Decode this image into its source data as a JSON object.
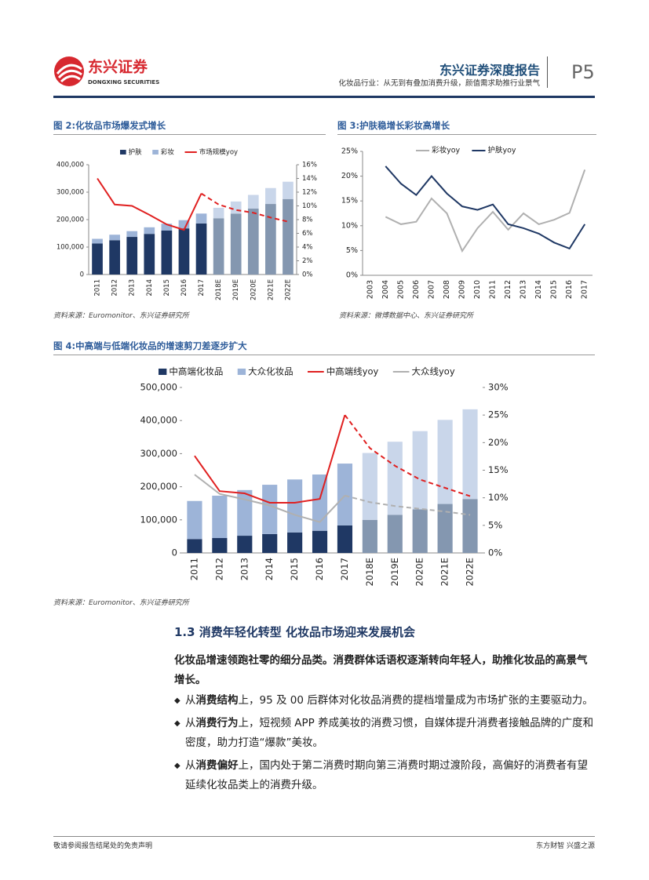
{
  "header": {
    "logo_cn": "东兴证券",
    "logo_en": "DONGXING SECURITIES",
    "report_type": "东兴证券深度报告",
    "subtitle": "化妆品行业：从无到有叠加消费升级，颜值需求助推行业景气",
    "page": "P5"
  },
  "chart_data": [
    {
      "type": "bar",
      "title": "图 2:化妆品市场爆发式增长",
      "source": "资料来源：Euromonitor、东兴证券研究所",
      "categories": [
        "2011",
        "2012",
        "2013",
        "2014",
        "2015",
        "2016",
        "2017",
        "2018E",
        "2019E",
        "2020E",
        "2021E",
        "2022E"
      ],
      "series": [
        {
          "name": "护肤",
          "type": "bar",
          "color": "#1f3864",
          "colors": [
            "#1f3864",
            "#1f3864",
            "#1f3864",
            "#1f3864",
            "#1f3864",
            "#1f3864",
            "#1f3864",
            "#8497b0",
            "#8497b0",
            "#8497b0",
            "#8497b0",
            "#8497b0"
          ],
          "values": [
            113000,
            125000,
            137000,
            148000,
            160000,
            168000,
            186000,
            205000,
            222000,
            240000,
            257000,
            275000
          ]
        },
        {
          "name": "彩妆",
          "type": "bar",
          "color": "#9db4d8",
          "colors": [
            "#9db4d8",
            "#9db4d8",
            "#9db4d8",
            "#9db4d8",
            "#9db4d8",
            "#9db4d8",
            "#9db4d8",
            "#c9d6ea",
            "#c9d6ea",
            "#c9d6ea",
            "#c9d6ea",
            "#c9d6ea"
          ],
          "values": [
            17000,
            20000,
            21000,
            24000,
            25000,
            30000,
            36000,
            38000,
            44000,
            50000,
            58000,
            63000
          ]
        },
        {
          "name": "市场规模yoy",
          "type": "line",
          "axis": "y2",
          "color": "#e02020",
          "dashed_from": 6,
          "values": [
            14,
            10.2,
            10,
            8.7,
            7.3,
            6.5,
            11.8,
            10.2,
            9.4,
            9,
            8.3,
            7.7
          ]
        }
      ],
      "ylim": [
        0,
        400000
      ],
      "yticks": [
        0,
        {
          "value": 100000,
          "label": "100,000"
        },
        {
          "value": 200000,
          "label": "200,000"
        },
        {
          "value": 300000,
          "label": "300,000"
        },
        {
          "value": 400000,
          "label": "400,000"
        }
      ],
      "y2lim": [
        0,
        16
      ],
      "y2ticks": [
        {
          "value": 0,
          "label": "0%"
        },
        {
          "value": 2,
          "label": "2%"
        },
        {
          "value": 4,
          "label": "4%"
        },
        {
          "value": 6,
          "label": "6%"
        },
        {
          "value": 8,
          "label": "8%"
        },
        {
          "value": 10,
          "label": "10%"
        },
        {
          "value": 12,
          "label": "12%"
        },
        {
          "value": 14,
          "label": "14%"
        },
        {
          "value": 16,
          "label": "16%"
        }
      ],
      "legend": "top"
    },
    {
      "type": "line",
      "title": "图 3:护肤稳增长彩妆高增长",
      "source": "资料来源：微博数据中心、东兴证券研究所",
      "categories": [
        "2003",
        "2004",
        "2005",
        "2006",
        "2007",
        "2008",
        "2009",
        "2010",
        "2011",
        "2012",
        "2013",
        "2014",
        "2015",
        "2016",
        "2017"
      ],
      "series": [
        {
          "name": "彩妆yoy",
          "color": "#b0b0b0",
          "values": [
            null,
            11.8,
            10.3,
            10.8,
            15.5,
            12.5,
            4.9,
            9.5,
            12.8,
            9.2,
            12.5,
            10.3,
            11.2,
            12.6,
            21.3
          ]
        },
        {
          "name": "护肤yoy",
          "color": "#1f3864",
          "values": [
            null,
            22,
            18.5,
            16.2,
            20,
            16.5,
            13.9,
            13.2,
            14.3,
            10.3,
            9.5,
            8.4,
            6.6,
            5.4,
            10.3
          ]
        }
      ],
      "ylim": [
        0,
        25
      ],
      "yticks": [
        {
          "value": 0,
          "label": "0%"
        },
        {
          "value": 5,
          "label": "5%"
        },
        {
          "value": 10,
          "label": "10%"
        },
        {
          "value": 15,
          "label": "15%"
        },
        {
          "value": 20,
          "label": "20%"
        },
        {
          "value": 25,
          "label": "25%"
        }
      ],
      "legend": "top"
    },
    {
      "type": "bar",
      "title": "图 4:中高端与低端化妆品的增速剪刀差逐步扩大",
      "source": "资料来源：Euromonitor、东兴证券研究所",
      "categories": [
        "2011",
        "2012",
        "2013",
        "2014",
        "2015",
        "2016",
        "2017",
        "2018E",
        "2019E",
        "2020E",
        "2021E",
        "2022E"
      ],
      "series": [
        {
          "name": "中高端化妆品",
          "type": "bar",
          "color": "#1f3864",
          "colors": [
            "#1f3864",
            "#1f3864",
            "#1f3864",
            "#1f3864",
            "#1f3864",
            "#1f3864",
            "#1f3864",
            "#8497b0",
            "#8497b0",
            "#8497b0",
            "#8497b0",
            "#8497b0"
          ],
          "values": [
            42000,
            45000,
            52000,
            57000,
            62000,
            67000,
            83000,
            100000,
            115000,
            132000,
            148000,
            163000
          ]
        },
        {
          "name": "大众化妆品",
          "type": "bar",
          "color": "#9db4d8",
          "colors": [
            "#9db4d8",
            "#9db4d8",
            "#9db4d8",
            "#9db4d8",
            "#9db4d8",
            "#9db4d8",
            "#9db4d8",
            "#c9d6ea",
            "#c9d6ea",
            "#c9d6ea",
            "#c9d6ea",
            "#c9d6ea"
          ],
          "values": [
            115000,
            128000,
            138000,
            149000,
            160000,
            170000,
            187000,
            202000,
            221000,
            236000,
            254000,
            271000
          ]
        },
        {
          "name": "中高端线yoy",
          "type": "line",
          "axis": "y2",
          "color": "#e02020",
          "dashed_from": 6,
          "values": [
            17.6,
            11.2,
            10.8,
            9.1,
            9.1,
            9.8,
            25,
            19,
            15.8,
            13.3,
            11.8,
            10.3
          ]
        },
        {
          "name": "大众线yoy",
          "type": "line",
          "axis": "y2",
          "color": "#b0b0b0",
          "dashed_from": 6,
          "values": [
            14.2,
            10.7,
            9.7,
            8.6,
            6.9,
            5.6,
            10.4,
            9.2,
            8.5,
            8,
            7.5,
            6.9
          ]
        }
      ],
      "ylim": [
        0,
        500000
      ],
      "yticks": [
        0,
        {
          "value": 100000,
          "label": "100,000"
        },
        {
          "value": 200000,
          "label": "200,000"
        },
        {
          "value": 300000,
          "label": "300,000"
        },
        {
          "value": 400000,
          "label": "400,000"
        },
        {
          "value": 500000,
          "label": "500,000"
        }
      ],
      "y2lim": [
        0,
        30
      ],
      "y2ticks": [
        {
          "value": 0,
          "label": "0%"
        },
        {
          "value": 5,
          "label": "5%"
        },
        {
          "value": 10,
          "label": "10%"
        },
        {
          "value": 15,
          "label": "15%"
        },
        {
          "value": 20,
          "label": "20%"
        },
        {
          "value": 25,
          "label": "25%"
        },
        {
          "value": 30,
          "label": "30%"
        }
      ],
      "legend": "top"
    }
  ],
  "section": {
    "heading": "1.3 消费年轻化转型 化妆品市场迎来发展机会",
    "summary": "化妆品增速领跑社零的细分品类。消费群体话语权逐渐转向年轻人，助推化妆品的高景气增长。",
    "bullets": [
      {
        "lead": "从",
        "bold": "消费结构",
        "text": "上，95 及 00 后群体对化妆品消费的提档增量成为市场扩张的主要驱动力。"
      },
      {
        "lead": "从",
        "bold": "消费行为",
        "text": "上，短视频 APP 养成美妆的消费习惯，自媒体提升消费者接触品牌的广度和密度，助力打造“爆款”美妆。"
      },
      {
        "lead": "从",
        "bold": "消费偏好",
        "text": "上，国内处于第二消费时期向第三消费时期过渡阶段，高偏好的消费者有望延续化妆品类上的消费升级。"
      }
    ]
  },
  "footer": {
    "left": "敬请参阅报告结尾处的免责声明",
    "right": "东方财智 兴盛之源"
  }
}
